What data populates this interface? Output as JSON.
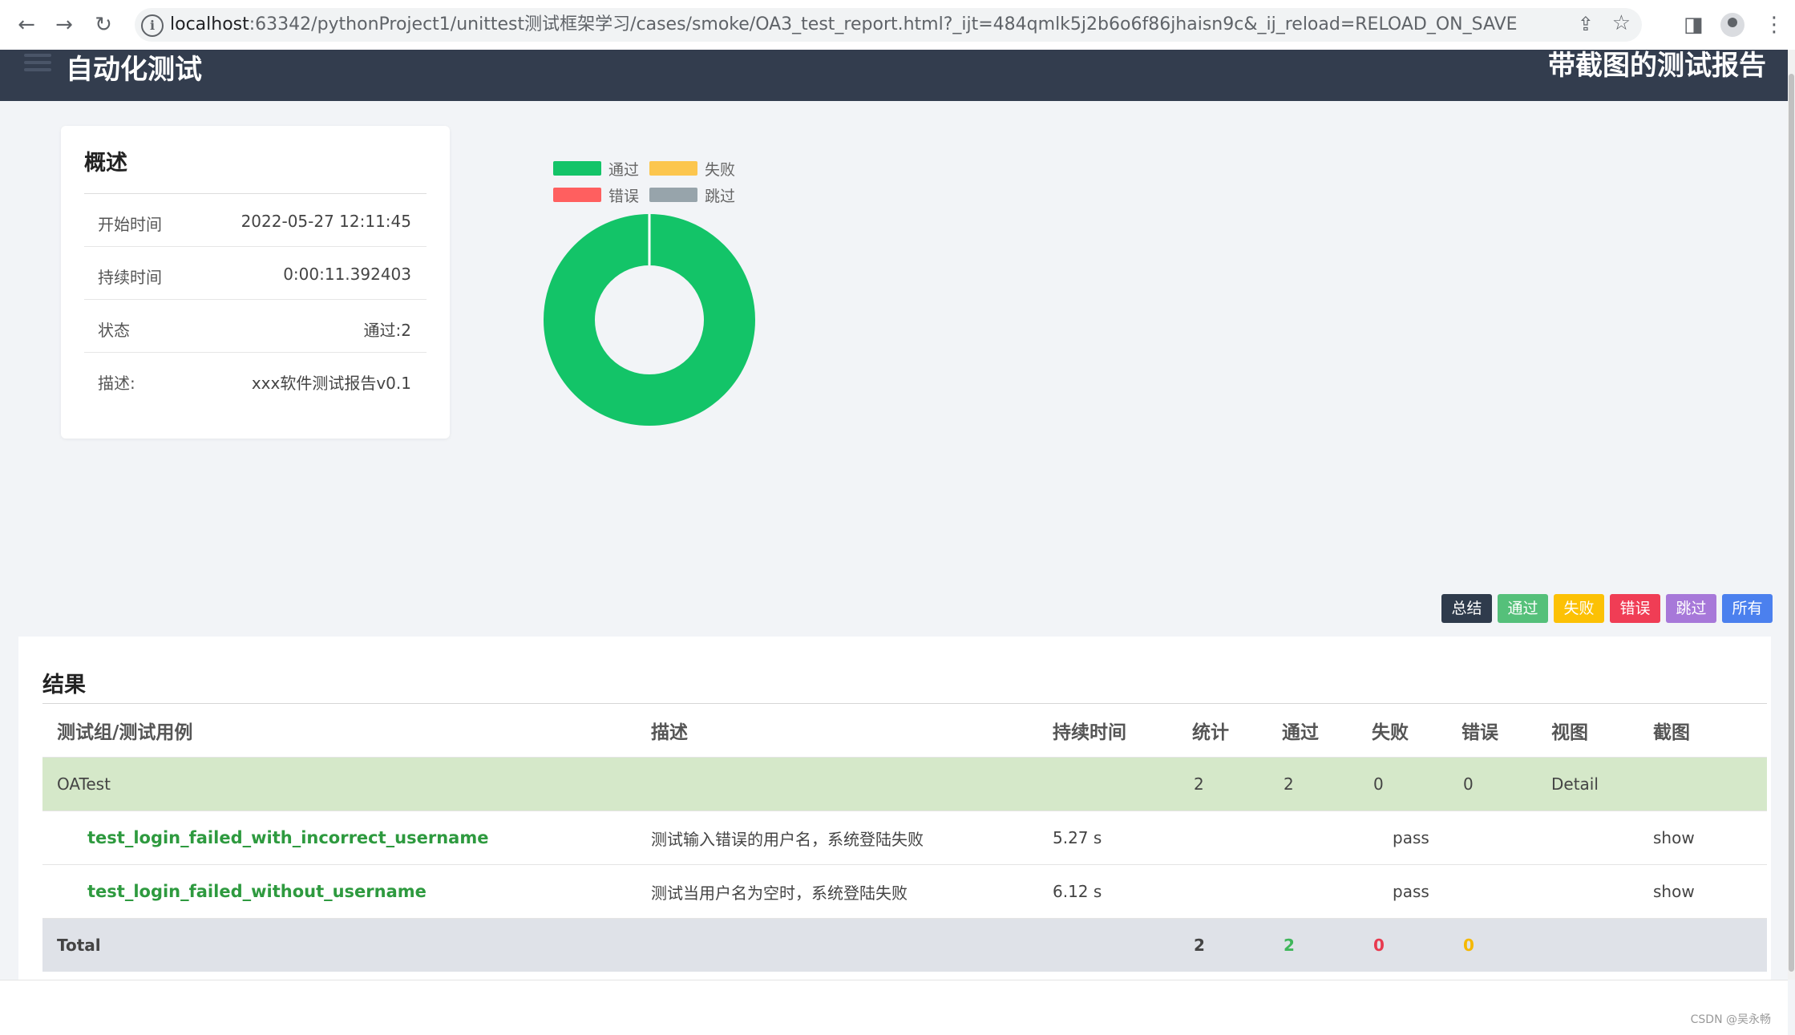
{
  "browser": {
    "url_host": "localhost",
    "url_path": ":63342/pythonProject1/unittest测试框架学习/cases/smoke/OA3_test_report.html?_ijt=484qmlk5j2b6o6f86jhaisn9c&_ij_reload=RELOAD_ON_SAVE",
    "back_icon": "←",
    "forward_icon": "→",
    "reload_icon": "↻",
    "info_icon": "i",
    "share_icon": "⇪",
    "bookmark_icon": "☆",
    "sidepanel_icon": "◨",
    "menu_icon": "⋮"
  },
  "header": {
    "brand": "自动化测试",
    "report_title": "带截图的测试报告"
  },
  "summary": {
    "title": "概述",
    "rows": [
      {
        "label": "开始时间",
        "value": "2022-05-27 12:11:45"
      },
      {
        "label": "持续时间",
        "value": "0:00:11.392403"
      },
      {
        "label": "状态",
        "value": "通过:2"
      },
      {
        "label": "描述:",
        "value": "xxx软件测试报告v0.1"
      }
    ]
  },
  "chart_data": {
    "type": "pie",
    "categories": [
      "通过",
      "失败",
      "错误",
      "跳过"
    ],
    "values": [
      2,
      0,
      0,
      0
    ],
    "colors": [
      "#13c468",
      "#fcc64e",
      "#ff5f5f",
      "#97a4ab"
    ],
    "legend": "top"
  },
  "filters": [
    {
      "label": "总结",
      "color": "#2f3b4c"
    },
    {
      "label": "通过",
      "color": "#55c07a"
    },
    {
      "label": "失败",
      "color": "#fcc105"
    },
    {
      "label": "错误",
      "color": "#f03d55"
    },
    {
      "label": "跳过",
      "color": "#a778d9"
    },
    {
      "label": "所有",
      "color": "#4b80ee"
    }
  ],
  "results": {
    "title": "结果",
    "columns": [
      "测试组/测试用例",
      "描述",
      "持续时间",
      "统计",
      "通过",
      "失败",
      "错误",
      "视图",
      "截图"
    ],
    "suite": {
      "name": "OATest",
      "count": "2",
      "pass": "2",
      "fail": "0",
      "error": "0",
      "view": "Detail"
    },
    "cases": [
      {
        "name": "test_login_failed_with_incorrect_username",
        "desc": "测试输入错误的用户名，系统登陆失败",
        "duration": "5.27 s",
        "status": "pass",
        "screenshot": "show"
      },
      {
        "name": "test_login_failed_without_username",
        "desc": "测试当用户名为空时，系统登陆失败",
        "duration": "6.12 s",
        "status": "pass",
        "screenshot": "show"
      }
    ],
    "total": {
      "label": "Total",
      "count": "2",
      "pass": "2",
      "fail": "0",
      "error": "0"
    },
    "total_colors": {
      "pass": "#3fb65a",
      "fail": "#e83a4f",
      "error": "#f5b800"
    }
  },
  "watermark": "CSDN @吴永畅"
}
